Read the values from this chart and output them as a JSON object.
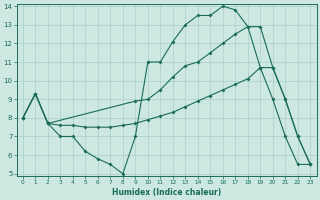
{
  "line1_x": [
    0,
    1,
    2,
    3,
    4,
    5,
    6,
    7,
    8,
    9,
    10,
    11,
    12,
    13,
    14,
    15,
    16,
    17,
    18,
    19,
    20,
    21,
    22,
    23
  ],
  "line1_y": [
    8.0,
    9.3,
    7.7,
    7.0,
    7.0,
    6.2,
    5.8,
    5.5,
    5.0,
    7.0,
    11.0,
    11.0,
    12.1,
    13.0,
    13.5,
    13.5,
    14.0,
    13.8,
    12.9,
    10.7,
    9.0,
    7.0,
    5.5,
    5.5
  ],
  "line2_x": [
    0,
    1,
    2,
    3,
    4,
    5,
    6,
    7,
    8,
    9,
    10,
    11,
    12,
    13,
    14,
    15,
    16,
    17,
    18,
    19,
    20,
    21,
    22,
    23
  ],
  "line2_y": [
    8.0,
    9.3,
    7.7,
    7.6,
    7.6,
    7.5,
    7.5,
    7.5,
    7.6,
    7.7,
    7.9,
    8.1,
    8.3,
    8.6,
    8.9,
    9.2,
    9.5,
    9.8,
    10.1,
    10.7,
    10.7,
    9.0,
    7.0,
    5.5
  ],
  "line3_x": [
    0,
    1,
    2,
    9,
    10,
    11,
    12,
    13,
    14,
    15,
    16,
    17,
    18,
    19,
    20,
    21,
    22,
    23
  ],
  "line3_y": [
    8.0,
    9.3,
    7.7,
    8.9,
    9.0,
    9.5,
    10.2,
    10.8,
    11.0,
    11.5,
    12.0,
    12.5,
    12.9,
    12.9,
    10.7,
    9.0,
    7.0,
    5.5
  ],
  "color": "#1a6b5a",
  "bg_color": "#cde8e0",
  "grid_color": "#aacfc7",
  "xlabel": "Humidex (Indice chaleur)",
  "ylim": [
    5,
    14
  ],
  "xlim": [
    -0.5,
    23.5
  ],
  "yticks": [
    5,
    6,
    7,
    8,
    9,
    10,
    11,
    12,
    13,
    14
  ],
  "xticks": [
    0,
    1,
    2,
    3,
    4,
    5,
    6,
    7,
    8,
    9,
    10,
    11,
    12,
    13,
    14,
    15,
    16,
    17,
    18,
    19,
    20,
    21,
    22,
    23
  ]
}
